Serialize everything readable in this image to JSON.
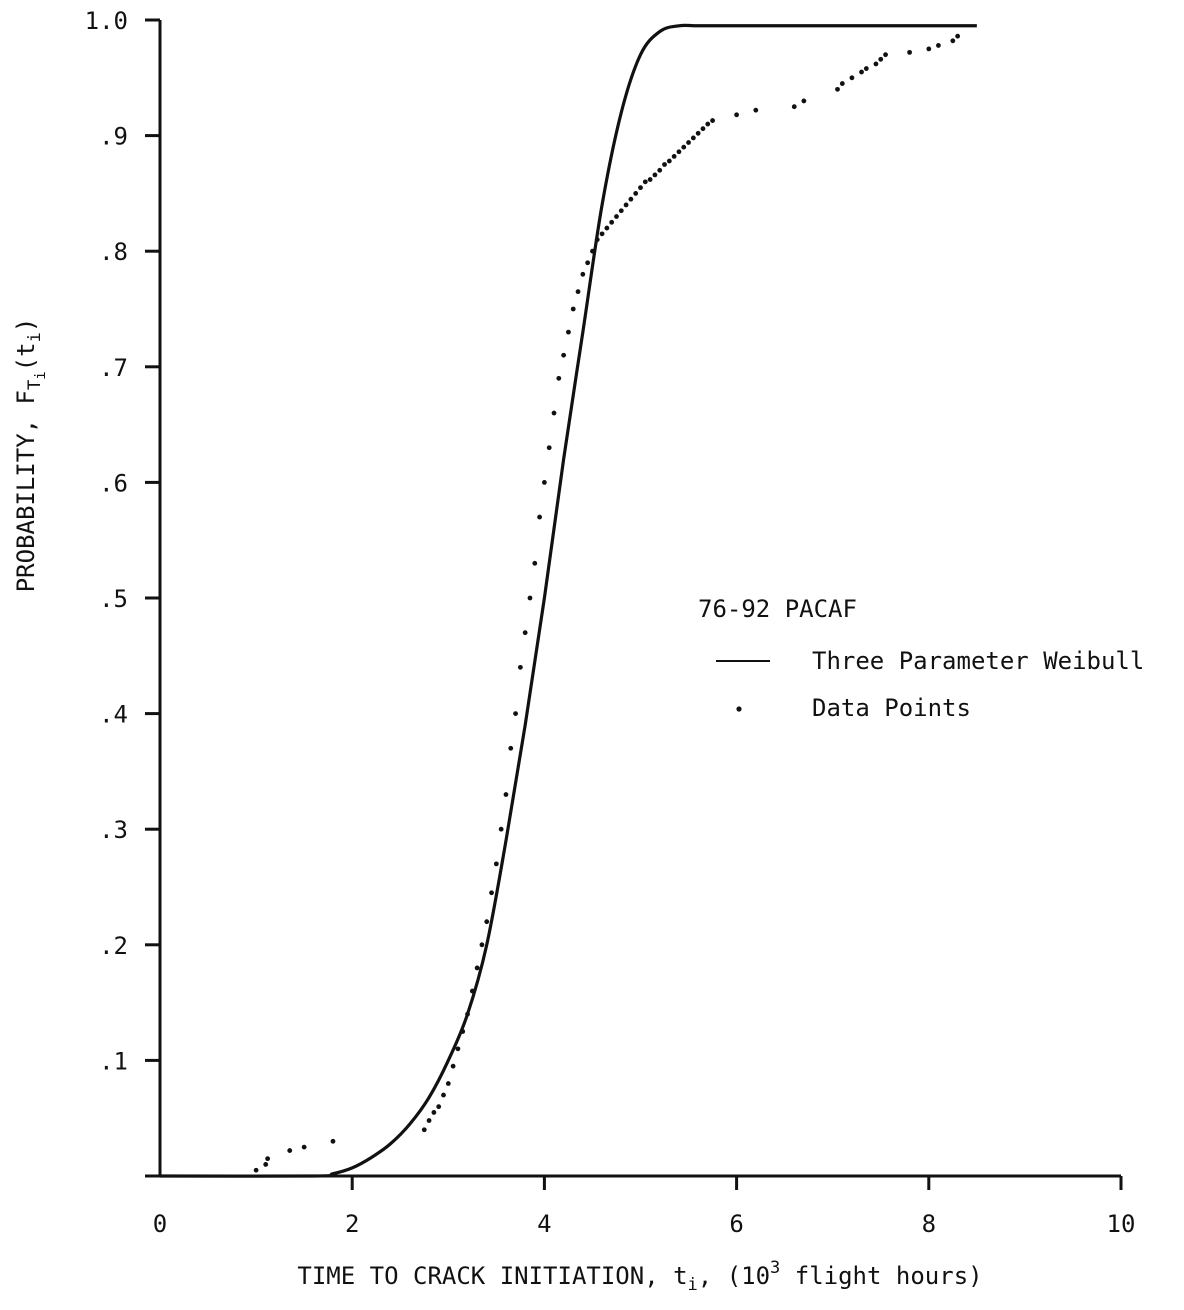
{
  "chart_data": {
    "type": "scatter",
    "title": "",
    "xlabel": {
      "prefix": "TIME TO CRACK INITIATION, t",
      "sub": "i",
      "mid": ", (10",
      "sup": "3",
      "suffix": " flight hours)"
    },
    "ylabel": {
      "prefix": "PROBABILITY, F",
      "sub1": "T",
      "sub2": "i",
      "open": "(t",
      "sub3": "i",
      "close": ")"
    },
    "xlim": [
      0,
      10
    ],
    "ylim": [
      0,
      1.0
    ],
    "x_ticks": [
      {
        "value": 0,
        "label": "0"
      },
      {
        "value": 2,
        "label": "2"
      },
      {
        "value": 4,
        "label": "4"
      },
      {
        "value": 6,
        "label": "6"
      },
      {
        "value": 8,
        "label": "8"
      },
      {
        "value": 10,
        "label": "10"
      }
    ],
    "y_ticks": [
      {
        "value": 0.1,
        "label": ".1"
      },
      {
        "value": 0.2,
        "label": ".2"
      },
      {
        "value": 0.3,
        "label": ".3"
      },
      {
        "value": 0.4,
        "label": ".4"
      },
      {
        "value": 0.5,
        "label": ".5"
      },
      {
        "value": 0.6,
        "label": ".6"
      },
      {
        "value": 0.7,
        "label": ".7"
      },
      {
        "value": 0.8,
        "label": ".8"
      },
      {
        "value": 0.9,
        "label": ".9"
      },
      {
        "value": 1.0,
        "label": "1.0"
      }
    ],
    "legend": {
      "title": "76-92  PACAF",
      "placement": "right-middle",
      "entries": [
        {
          "symbol": "line",
          "label": "Three Parameter Weibull"
        },
        {
          "symbol": "dot",
          "label": "Data Points"
        }
      ]
    },
    "series": [
      {
        "name": "Three Parameter Weibull",
        "kind": "line",
        "x": [
          0,
          1.6,
          1.8,
          2.0,
          2.2,
          2.4,
          2.6,
          2.8,
          3.0,
          3.2,
          3.4,
          3.6,
          3.8,
          4.0,
          4.2,
          4.4,
          4.6,
          4.8,
          5.0,
          5.2,
          5.4,
          5.6,
          6.0,
          7.0,
          8.5
        ],
        "y": [
          0,
          0.0,
          0.002,
          0.007,
          0.016,
          0.028,
          0.045,
          0.068,
          0.1,
          0.14,
          0.2,
          0.29,
          0.39,
          0.5,
          0.62,
          0.73,
          0.84,
          0.92,
          0.97,
          0.99,
          0.995,
          0.995,
          0.995,
          0.995,
          0.995
        ]
      },
      {
        "name": "Data Points",
        "kind": "scatter",
        "x": [
          1.0,
          1.1,
          1.12,
          1.35,
          1.5,
          1.8,
          2.75,
          2.8,
          2.85,
          2.9,
          2.95,
          3.0,
          3.05,
          3.1,
          3.15,
          3.2,
          3.25,
          3.3,
          3.35,
          3.4,
          3.45,
          3.5,
          3.55,
          3.6,
          3.65,
          3.7,
          3.75,
          3.8,
          3.85,
          3.9,
          3.95,
          4.0,
          4.05,
          4.1,
          4.15,
          4.2,
          4.25,
          4.3,
          4.35,
          4.4,
          4.45,
          4.5,
          4.55,
          4.6,
          4.65,
          4.7,
          4.75,
          4.8,
          4.85,
          4.9,
          4.95,
          5.0,
          5.05,
          5.1,
          5.15,
          5.2,
          5.25,
          5.3,
          5.35,
          5.4,
          5.45,
          5.5,
          5.55,
          5.6,
          5.65,
          5.7,
          5.75,
          6.0,
          6.2,
          6.6,
          6.7,
          7.05,
          7.1,
          7.2,
          7.3,
          7.35,
          7.45,
          7.5,
          7.55,
          7.8,
          8.0,
          8.1,
          8.25,
          8.3
        ],
        "y": [
          0.005,
          0.01,
          0.015,
          0.022,
          0.025,
          0.03,
          0.04,
          0.048,
          0.055,
          0.06,
          0.07,
          0.08,
          0.095,
          0.11,
          0.125,
          0.14,
          0.16,
          0.18,
          0.2,
          0.22,
          0.245,
          0.27,
          0.3,
          0.33,
          0.37,
          0.4,
          0.44,
          0.47,
          0.5,
          0.53,
          0.57,
          0.6,
          0.63,
          0.66,
          0.69,
          0.71,
          0.73,
          0.75,
          0.765,
          0.78,
          0.79,
          0.8,
          0.81,
          0.815,
          0.82,
          0.825,
          0.83,
          0.835,
          0.84,
          0.845,
          0.85,
          0.855,
          0.86,
          0.862,
          0.866,
          0.87,
          0.875,
          0.878,
          0.882,
          0.886,
          0.89,
          0.894,
          0.898,
          0.902,
          0.906,
          0.91,
          0.913,
          0.918,
          0.922,
          0.925,
          0.93,
          0.94,
          0.945,
          0.95,
          0.955,
          0.958,
          0.962,
          0.966,
          0.97,
          0.972,
          0.975,
          0.978,
          0.982,
          0.986
        ]
      }
    ]
  }
}
